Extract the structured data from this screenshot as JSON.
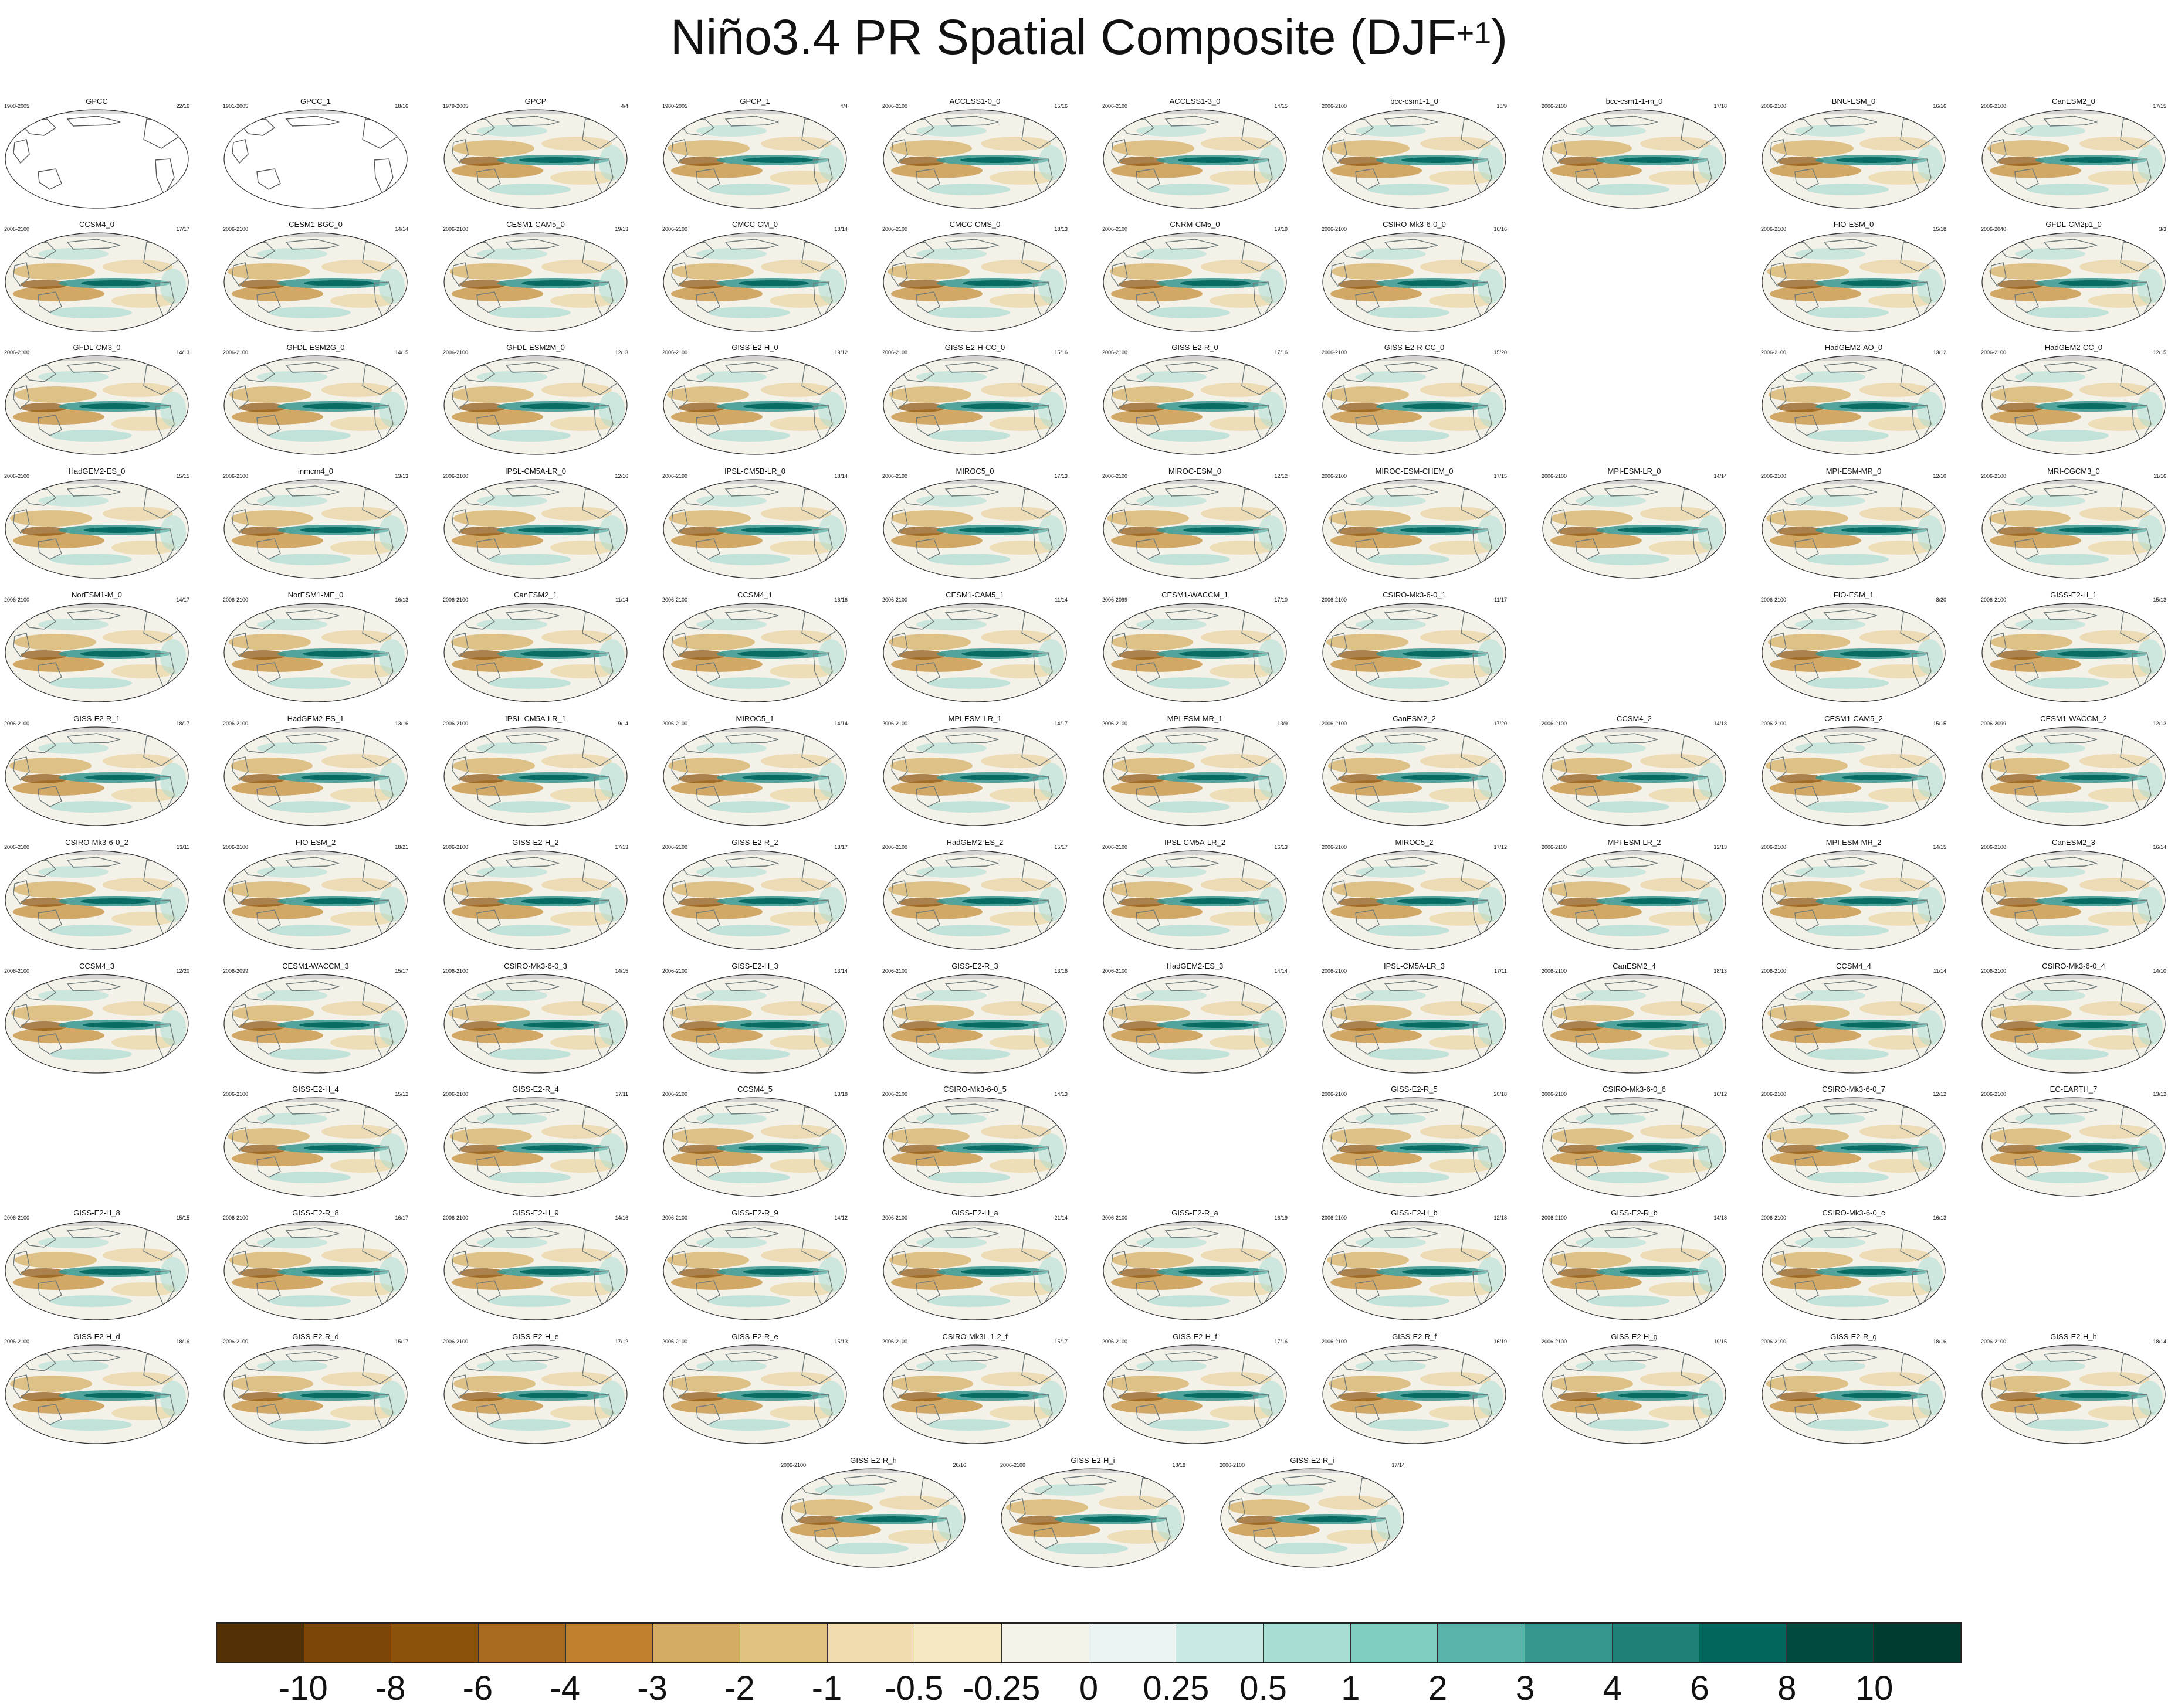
{
  "title": {
    "main": "Niño3.4 PR Spatial Composite (DJF",
    "sup": "+1",
    "close": ")"
  },
  "panels": [
    {
      "name": "GPCC",
      "years": "1900-2005",
      "count": "22/16",
      "style": "obs_land"
    },
    {
      "name": "GPCC_1",
      "years": "1901-2005",
      "count": "18/16",
      "style": "obs_land"
    },
    {
      "name": "GPCP",
      "years": "1979-2005",
      "count": "4/4",
      "style": "full"
    },
    {
      "name": "GPCP_1",
      "years": "1980-2005",
      "count": "4/4",
      "style": "full"
    },
    {
      "name": "ACCESS1-0_0",
      "years": "2006-2100",
      "count": "15/16",
      "style": "full"
    },
    {
      "name": "ACCESS1-3_0",
      "years": "2006-2100",
      "count": "14/15",
      "style": "full"
    },
    {
      "name": "bcc-csm1-1_0",
      "years": "2006-2100",
      "count": "18/9",
      "style": "full"
    },
    {
      "name": "bcc-csm1-1-m_0",
      "years": "2006-2100",
      "count": "17/18",
      "style": "full"
    },
    {
      "name": "BNU-ESM_0",
      "years": "2006-2100",
      "count": "16/16",
      "style": "full"
    },
    {
      "name": "CanESM2_0",
      "years": "2006-2100",
      "count": "17/15",
      "style": "full"
    },
    {
      "name": "CCSM4_0",
      "years": "2006-2100",
      "count": "17/17",
      "style": "full"
    },
    {
      "name": "CESM1-BGC_0",
      "years": "2006-2100",
      "count": "14/14",
      "style": "full"
    },
    {
      "name": "CESM1-CAM5_0",
      "years": "2006-2100",
      "count": "19/13",
      "style": "full"
    },
    {
      "name": "CMCC-CM_0",
      "years": "2006-2100",
      "count": "18/14",
      "style": "full"
    },
    {
      "name": "CMCC-CMS_0",
      "years": "2006-2100",
      "count": "18/13",
      "style": "full"
    },
    {
      "name": "CNRM-CM5_0",
      "years": "2006-2100",
      "count": "19/19",
      "style": "full"
    },
    {
      "name": "CSIRO-Mk3-6-0_0",
      "years": "2006-2100",
      "count": "16/16",
      "style": "full"
    },
    {
      "name": "FIO-ESM_0",
      "years": "2006-2100",
      "count": "15/18",
      "style": "full"
    },
    {
      "name": "GFDL-CM2p1_0",
      "years": "2006-2040",
      "count": "3/3",
      "style": "full"
    },
    {
      "name": "GFDL-CM3_0",
      "years": "2006-2100",
      "count": "14/13",
      "style": "full"
    },
    {
      "name": "GFDL-ESM2G_0",
      "years": "2006-2100",
      "count": "14/15",
      "style": "full"
    },
    {
      "name": "GFDL-ESM2M_0",
      "years": "2006-2100",
      "count": "12/13",
      "style": "full"
    },
    {
      "name": "GISS-E2-H_0",
      "years": "2006-2100",
      "count": "19/12",
      "style": "full"
    },
    {
      "name": "GISS-E2-H-CC_0",
      "years": "2006-2100",
      "count": "15/16",
      "style": "full"
    },
    {
      "name": "GISS-E2-R_0",
      "years": "2006-2100",
      "count": "17/16",
      "style": "full"
    },
    {
      "name": "GISS-E2-R-CC_0",
      "years": "2006-2100",
      "count": "15/20",
      "style": "full"
    },
    {
      "name": "HadGEM2-AO_0",
      "years": "2006-2100",
      "count": "13/12",
      "style": "full"
    },
    {
      "name": "HadGEM2-CC_0",
      "years": "2006-2100",
      "count": "12/15",
      "style": "full"
    },
    {
      "name": "HadGEM2-ES_0",
      "years": "2006-2100",
      "count": "15/15",
      "style": "full"
    },
    {
      "name": "inmcm4_0",
      "years": "2006-2100",
      "count": "13/13",
      "style": "full"
    },
    {
      "name": "IPSL-CM5A-LR_0",
      "years": "2006-2100",
      "count": "12/16",
      "style": "full"
    },
    {
      "name": "IPSL-CM5B-LR_0",
      "years": "2006-2100",
      "count": "18/14",
      "style": "full"
    },
    {
      "name": "MIROC5_0",
      "years": "2006-2100",
      "count": "17/13",
      "style": "full"
    },
    {
      "name": "MIROC-ESM_0",
      "years": "2006-2100",
      "count": "12/12",
      "style": "full"
    },
    {
      "name": "MIROC-ESM-CHEM_0",
      "years": "2006-2100",
      "count": "17/15",
      "style": "full"
    },
    {
      "name": "MPI-ESM-LR_0",
      "years": "2006-2100",
      "count": "14/14",
      "style": "full"
    },
    {
      "name": "MPI-ESM-MR_0",
      "years": "2006-2100",
      "count": "12/10",
      "style": "full"
    },
    {
      "name": "MRI-CGCM3_0",
      "years": "2006-2100",
      "count": "11/16",
      "style": "full"
    },
    {
      "name": "NorESM1-M_0",
      "years": "2006-2100",
      "count": "14/17",
      "style": "full"
    },
    {
      "name": "NorESM1-ME_0",
      "years": "2006-2100",
      "count": "16/13",
      "style": "full"
    },
    {
      "name": "CanESM2_1",
      "years": "2006-2100",
      "count": "11/14",
      "style": "full"
    },
    {
      "name": "CCSM4_1",
      "years": "2006-2100",
      "count": "16/16",
      "style": "full"
    },
    {
      "name": "CESM1-CAM5_1",
      "years": "2006-2100",
      "count": "11/14",
      "style": "full"
    },
    {
      "name": "CESM1-WACCM_1",
      "years": "2006-2099",
      "count": "17/10",
      "style": "full"
    },
    {
      "name": "CSIRO-Mk3-6-0_1",
      "years": "2006-2100",
      "count": "11/17",
      "style": "full"
    },
    {
      "name": "FIO-ESM_1",
      "years": "2006-2100",
      "count": "8/20",
      "style": "full"
    },
    {
      "name": "GISS-E2-H_1",
      "years": "2006-2100",
      "count": "15/13",
      "style": "full"
    },
    {
      "name": "GISS-E2-R_1",
      "years": "2006-2100",
      "count": "18/17",
      "style": "full"
    },
    {
      "name": "HadGEM2-ES_1",
      "years": "2006-2100",
      "count": "13/16",
      "style": "full"
    },
    {
      "name": "IPSL-CM5A-LR_1",
      "years": "2006-2100",
      "count": "9/14",
      "style": "full"
    },
    {
      "name": "MIROC5_1",
      "years": "2006-2100",
      "count": "14/14",
      "style": "full"
    },
    {
      "name": "MPI-ESM-LR_1",
      "years": "2006-2100",
      "count": "14/17",
      "style": "full"
    },
    {
      "name": "MPI-ESM-MR_1",
      "years": "2006-2100",
      "count": "13/9",
      "style": "full"
    },
    {
      "name": "CanESM2_2",
      "years": "2006-2100",
      "count": "17/20",
      "style": "full"
    },
    {
      "name": "CCSM4_2",
      "years": "2006-2100",
      "count": "14/18",
      "style": "full"
    },
    {
      "name": "CESM1-CAM5_2",
      "years": "2006-2100",
      "count": "15/15",
      "style": "full"
    },
    {
      "name": "CESM1-WACCM_2",
      "years": "2006-2099",
      "count": "12/13",
      "style": "full"
    },
    {
      "name": "CSIRO-Mk3-6-0_2",
      "years": "2006-2100",
      "count": "13/11",
      "style": "full"
    },
    {
      "name": "FIO-ESM_2",
      "years": "2006-2100",
      "count": "18/21",
      "style": "full"
    },
    {
      "name": "GISS-E2-H_2",
      "years": "2006-2100",
      "count": "17/13",
      "style": "full"
    },
    {
      "name": "GISS-E2-R_2",
      "years": "2006-2100",
      "count": "13/17",
      "style": "full"
    },
    {
      "name": "HadGEM2-ES_2",
      "years": "2006-2100",
      "count": "15/17",
      "style": "full"
    },
    {
      "name": "IPSL-CM5A-LR_2",
      "years": "2006-2100",
      "count": "16/13",
      "style": "full"
    },
    {
      "name": "MIROC5_2",
      "years": "2006-2100",
      "count": "17/12",
      "style": "full"
    },
    {
      "name": "MPI-ESM-LR_2",
      "years": "2006-2100",
      "count": "12/13",
      "style": "full"
    },
    {
      "name": "MPI-ESM-MR_2",
      "years": "2006-2100",
      "count": "14/15",
      "style": "full"
    },
    {
      "name": "CanESM2_3",
      "years": "2006-2100",
      "count": "16/14",
      "style": "full"
    },
    {
      "name": "CCSM4_3",
      "years": "2006-2100",
      "count": "12/20",
      "style": "full"
    },
    {
      "name": "CESM1-WACCM_3",
      "years": "2006-2099",
      "count": "15/17",
      "style": "full"
    },
    {
      "name": "CSIRO-Mk3-6-0_3",
      "years": "2006-2100",
      "count": "14/15",
      "style": "full"
    },
    {
      "name": "GISS-E2-H_3",
      "years": "2006-2100",
      "count": "13/14",
      "style": "full"
    },
    {
      "name": "GISS-E2-R_3",
      "years": "2006-2100",
      "count": "13/16",
      "style": "full"
    },
    {
      "name": "HadGEM2-ES_3",
      "years": "2006-2100",
      "count": "14/14",
      "style": "full"
    },
    {
      "name": "IPSL-CM5A-LR_3",
      "years": "2006-2100",
      "count": "17/11",
      "style": "full"
    },
    {
      "name": "CanESM2_4",
      "years": "2006-2100",
      "count": "18/13",
      "style": "full"
    },
    {
      "name": "CCSM4_4",
      "years": "2006-2100",
      "count": "11/14",
      "style": "full"
    },
    {
      "name": "CSIRO-Mk3-6-0_4",
      "years": "2006-2100",
      "count": "14/10",
      "style": "full"
    },
    {
      "name": "GISS-E2-H_4",
      "years": "2006-2100",
      "count": "15/12",
      "style": "full"
    },
    {
      "name": "GISS-E2-R_4",
      "years": "2006-2100",
      "count": "17/11",
      "style": "full"
    },
    {
      "name": "CCSM4_5",
      "years": "2006-2100",
      "count": "13/18",
      "style": "full"
    },
    {
      "name": "CSIRO-Mk3-6-0_5",
      "years": "2006-2100",
      "count": "14/13",
      "style": "full"
    },
    {
      "name": "GISS-E2-R_5",
      "years": "2006-2100",
      "count": "20/18",
      "style": "full"
    },
    {
      "name": "CSIRO-Mk3-6-0_6",
      "years": "2006-2100",
      "count": "16/12",
      "style": "full"
    },
    {
      "name": "CSIRO-Mk3-6-0_7",
      "years": "2006-2100",
      "count": "12/12",
      "style": "full"
    },
    {
      "name": "EC-EARTH_7",
      "years": "2006-2100",
      "count": "13/12",
      "style": "full"
    },
    {
      "name": "GISS-E2-H_8",
      "years": "2006-2100",
      "count": "15/15",
      "style": "full"
    },
    {
      "name": "GISS-E2-R_8",
      "years": "2006-2100",
      "count": "16/17",
      "style": "full"
    },
    {
      "name": "GISS-E2-H_9",
      "years": "2006-2100",
      "count": "14/16",
      "style": "full"
    },
    {
      "name": "GISS-E2-R_9",
      "years": "2006-2100",
      "count": "14/12",
      "style": "full"
    },
    {
      "name": "GISS-E2-H_a",
      "years": "2006-2100",
      "count": "21/14",
      "style": "full"
    },
    {
      "name": "GISS-E2-R_a",
      "years": "2006-2100",
      "count": "16/19",
      "style": "full"
    },
    {
      "name": "GISS-E2-H_b",
      "years": "2006-2100",
      "count": "12/18",
      "style": "full"
    },
    {
      "name": "GISS-E2-R_b",
      "years": "2006-2100",
      "count": "14/18",
      "style": "full"
    },
    {
      "name": "CSIRO-Mk3-6-0_c",
      "years": "2006-2100",
      "count": "16/13",
      "style": "full"
    },
    {
      "name": "GISS-E2-H_d",
      "years": "2006-2100",
      "count": "18/16",
      "style": "full"
    },
    {
      "name": "GISS-E2-R_d",
      "years": "2006-2100",
      "count": "15/17",
      "style": "full"
    },
    {
      "name": "GISS-E2-H_e",
      "years": "2006-2100",
      "count": "17/12",
      "style": "full"
    },
    {
      "name": "GISS-E2-R_e",
      "years": "2006-2100",
      "count": "15/13",
      "style": "full"
    },
    {
      "name": "CSIRO-Mk3L-1-2_f",
      "years": "2006-2100",
      "count": "15/17",
      "style": "full"
    },
    {
      "name": "GISS-E2-H_f",
      "years": "2006-2100",
      "count": "17/16",
      "style": "full"
    },
    {
      "name": "GISS-E2-R_f",
      "years": "2006-2100",
      "count": "16/19",
      "style": "full"
    },
    {
      "name": "GISS-E2-H_g",
      "years": "2006-2100",
      "count": "19/15",
      "style": "full"
    },
    {
      "name": "GISS-E2-R_g",
      "years": "2006-2100",
      "count": "18/16",
      "style": "full"
    },
    {
      "name": "GISS-E2-H_h",
      "years": "2006-2100",
      "count": "18/14",
      "style": "full"
    },
    {
      "name": "GISS-E2-R_h",
      "years": "2006-2100",
      "count": "20/16",
      "style": "full"
    },
    {
      "name": "GISS-E2-H_i",
      "years": "2006-2100",
      "count": "18/18",
      "style": "full"
    },
    {
      "name": "GISS-E2-R_i",
      "years": "2006-2100",
      "count": "17/14",
      "style": "full"
    }
  ],
  "colorbar": {
    "colors": [
      "#543005",
      "#7a4709",
      "#8c510a",
      "#a86b1f",
      "#bf812d",
      "#d3ab63",
      "#dfc27d",
      "#f0dcae",
      "#f6e8c3",
      "#f5f2ea",
      "#eaf3f1",
      "#c7eae5",
      "#a8ddd3",
      "#80cdc1",
      "#5ab4ac",
      "#35978f",
      "#1f8077",
      "#01665e",
      "#014a40",
      "#003c30"
    ],
    "labels": [
      "-10",
      "-8",
      "-6",
      "-4",
      "-3",
      "-2",
      "-1",
      "-0.5",
      "-0.25",
      "0",
      "0.25",
      "0.5",
      "1",
      "2",
      "3",
      "4",
      "6",
      "8",
      "10"
    ]
  }
}
